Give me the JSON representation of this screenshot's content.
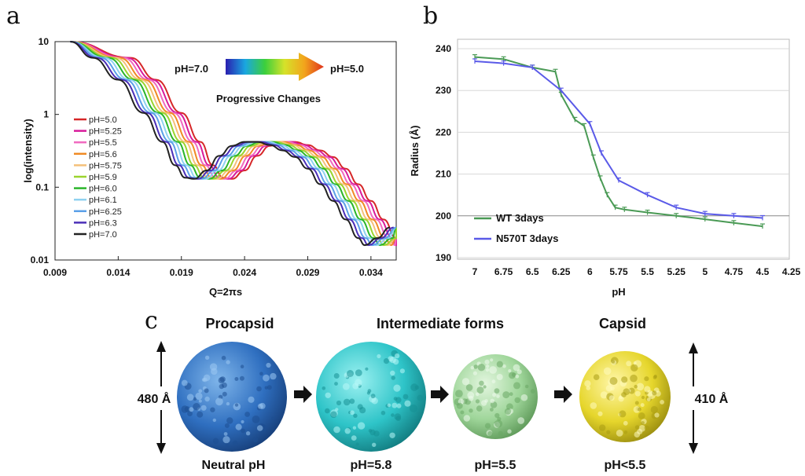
{
  "panels": {
    "a": "a",
    "b": "b",
    "c": "c"
  },
  "chart_data": [
    {
      "panel": "a",
      "type": "line",
      "xlabel": "Q=2πs",
      "ylabel": "log(intensity)",
      "xlim": [
        0.009,
        0.036
      ],
      "ylim": [
        0.01,
        10
      ],
      "yscale": "log",
      "xticks": [
        "0.009",
        "0.014",
        "0.019",
        "0.024",
        "0.029",
        "0.034"
      ],
      "yticks": [
        "10",
        "1",
        "0.1",
        "0.01"
      ],
      "annotation": {
        "left": "pH=7.0",
        "right": "pH=5.0",
        "caption": "Progressive Changes"
      },
      "legend_position": "left",
      "series": [
        {
          "name": "pH=5.0",
          "color": "#d62728",
          "shift": 0.003
        },
        {
          "name": "pH=5.25",
          "color": "#d81b9a",
          "shift": 0.0027
        },
        {
          "name": "pH=5.5",
          "color": "#f06ac0",
          "shift": 0.0024
        },
        {
          "name": "pH=5.6",
          "color": "#f08a24",
          "shift": 0.0021
        },
        {
          "name": "pH=5.75",
          "color": "#f5c07a",
          "shift": 0.0018
        },
        {
          "name": "pH=5.9",
          "color": "#9bd42e",
          "shift": 0.0015
        },
        {
          "name": "pH=6.0",
          "color": "#2ab52a",
          "shift": 0.0012
        },
        {
          "name": "pH=6.1",
          "color": "#8fd1f0",
          "shift": 0.0009
        },
        {
          "name": "pH=6.25",
          "color": "#5aa0e8",
          "shift": 0.0006
        },
        {
          "name": "pH=6.3",
          "color": "#4b2fb8",
          "shift": 0.0003
        },
        {
          "name": "pH=7.0",
          "color": "#222222",
          "shift": 0.0
        }
      ],
      "base_curve": {
        "x": [
          0.0102,
          0.012,
          0.014,
          0.016,
          0.0175,
          0.0185,
          0.0193,
          0.02,
          0.021,
          0.022,
          0.023,
          0.024,
          0.025,
          0.026,
          0.027,
          0.028,
          0.029,
          0.03,
          0.031,
          0.032,
          0.033,
          0.0335,
          0.0345,
          0.0355
        ],
        "y": [
          10,
          6.0,
          3.0,
          1.05,
          0.42,
          0.2,
          0.135,
          0.13,
          0.17,
          0.27,
          0.37,
          0.42,
          0.42,
          0.38,
          0.32,
          0.26,
          0.18,
          0.11,
          0.065,
          0.036,
          0.02,
          0.016,
          0.02,
          0.028
        ]
      }
    },
    {
      "panel": "b",
      "type": "line",
      "xlabel": "pH",
      "ylabel": "Radius (Å)",
      "xlim": [
        7.25,
        4.25
      ],
      "ylim": [
        190,
        240
      ],
      "xticks": [
        "7",
        "6.75",
        "6.5",
        "6.25",
        "6",
        "5.75",
        "5.5",
        "5.25",
        "5",
        "4.75",
        "4.5",
        "4.25"
      ],
      "yticks": [
        "240",
        "230",
        "220",
        "210",
        "200",
        "190"
      ],
      "grid": true,
      "legend_position": "bottom-left",
      "series": [
        {
          "name": "WT 3days",
          "color": "#4a9a55",
          "x": [
            7,
            6.75,
            6.5,
            6.3,
            6.25,
            6.13,
            6.05,
            5.97,
            5.91,
            5.85,
            5.78,
            5.7,
            5.5,
            5.25,
            5,
            4.75,
            4.5
          ],
          "y": [
            238,
            237.5,
            235.5,
            234.5,
            229,
            223,
            221.5,
            214,
            209,
            205,
            202,
            201.5,
            200.8,
            200,
            199.2,
            198.3,
            197.5
          ]
        },
        {
          "name": "N570T 3days",
          "color": "#5a5ae8",
          "x": [
            7,
            6.75,
            6.5,
            6.25,
            6,
            5.9,
            5.75,
            5.5,
            5.25,
            5,
            4.75,
            4.5
          ],
          "y": [
            237,
            236.5,
            235.5,
            230,
            222,
            215,
            208.5,
            205,
            202,
            200.5,
            200,
            199.5
          ]
        }
      ]
    }
  ],
  "figure_c": {
    "titles": [
      "Procapsid",
      "Intermediate forms",
      "Capsid"
    ],
    "left_dimension": "480 Å",
    "right_dimension": "410 Å",
    "labels": [
      "Neutral pH",
      "pH=5.8",
      "pH=5.5",
      "pH<5.5"
    ],
    "colors": [
      "#2f6fc0",
      "#2ec4c8",
      "#9fd69a",
      "#e6d62c"
    ]
  }
}
